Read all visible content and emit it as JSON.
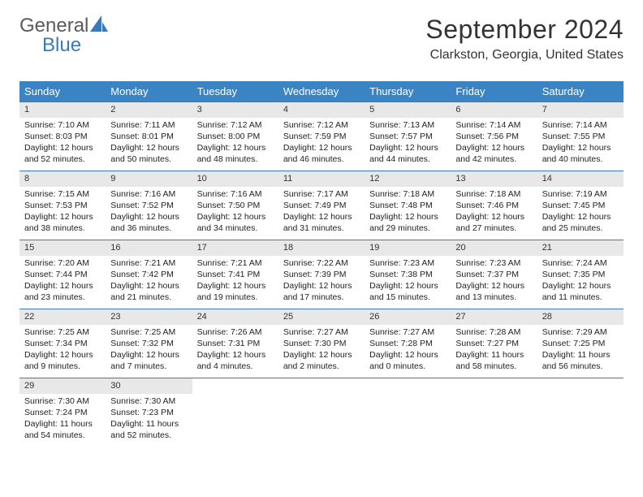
{
  "logo": {
    "text1": "General",
    "text2": "Blue"
  },
  "title": "September 2024",
  "location": "Clarkston, Georgia, United States",
  "colors": {
    "header_bg": "#3a84c4",
    "header_text": "#ffffff",
    "daynum_bg": "#e8e8e8",
    "row_border": "#3a7ab8",
    "logo_gray": "#5a5a5a",
    "logo_blue": "#3a7ab8"
  },
  "weekdays": [
    "Sunday",
    "Monday",
    "Tuesday",
    "Wednesday",
    "Thursday",
    "Friday",
    "Saturday"
  ],
  "start_offset": 0,
  "days": [
    {
      "n": 1,
      "sunrise": "7:10 AM",
      "sunset": "8:03 PM",
      "daylight": "12 hours and 52 minutes."
    },
    {
      "n": 2,
      "sunrise": "7:11 AM",
      "sunset": "8:01 PM",
      "daylight": "12 hours and 50 minutes."
    },
    {
      "n": 3,
      "sunrise": "7:12 AM",
      "sunset": "8:00 PM",
      "daylight": "12 hours and 48 minutes."
    },
    {
      "n": 4,
      "sunrise": "7:12 AM",
      "sunset": "7:59 PM",
      "daylight": "12 hours and 46 minutes."
    },
    {
      "n": 5,
      "sunrise": "7:13 AM",
      "sunset": "7:57 PM",
      "daylight": "12 hours and 44 minutes."
    },
    {
      "n": 6,
      "sunrise": "7:14 AM",
      "sunset": "7:56 PM",
      "daylight": "12 hours and 42 minutes."
    },
    {
      "n": 7,
      "sunrise": "7:14 AM",
      "sunset": "7:55 PM",
      "daylight": "12 hours and 40 minutes."
    },
    {
      "n": 8,
      "sunrise": "7:15 AM",
      "sunset": "7:53 PM",
      "daylight": "12 hours and 38 minutes."
    },
    {
      "n": 9,
      "sunrise": "7:16 AM",
      "sunset": "7:52 PM",
      "daylight": "12 hours and 36 minutes."
    },
    {
      "n": 10,
      "sunrise": "7:16 AM",
      "sunset": "7:50 PM",
      "daylight": "12 hours and 34 minutes."
    },
    {
      "n": 11,
      "sunrise": "7:17 AM",
      "sunset": "7:49 PM",
      "daylight": "12 hours and 31 minutes."
    },
    {
      "n": 12,
      "sunrise": "7:18 AM",
      "sunset": "7:48 PM",
      "daylight": "12 hours and 29 minutes."
    },
    {
      "n": 13,
      "sunrise": "7:18 AM",
      "sunset": "7:46 PM",
      "daylight": "12 hours and 27 minutes."
    },
    {
      "n": 14,
      "sunrise": "7:19 AM",
      "sunset": "7:45 PM",
      "daylight": "12 hours and 25 minutes."
    },
    {
      "n": 15,
      "sunrise": "7:20 AM",
      "sunset": "7:44 PM",
      "daylight": "12 hours and 23 minutes."
    },
    {
      "n": 16,
      "sunrise": "7:21 AM",
      "sunset": "7:42 PM",
      "daylight": "12 hours and 21 minutes."
    },
    {
      "n": 17,
      "sunrise": "7:21 AM",
      "sunset": "7:41 PM",
      "daylight": "12 hours and 19 minutes."
    },
    {
      "n": 18,
      "sunrise": "7:22 AM",
      "sunset": "7:39 PM",
      "daylight": "12 hours and 17 minutes."
    },
    {
      "n": 19,
      "sunrise": "7:23 AM",
      "sunset": "7:38 PM",
      "daylight": "12 hours and 15 minutes."
    },
    {
      "n": 20,
      "sunrise": "7:23 AM",
      "sunset": "7:37 PM",
      "daylight": "12 hours and 13 minutes."
    },
    {
      "n": 21,
      "sunrise": "7:24 AM",
      "sunset": "7:35 PM",
      "daylight": "12 hours and 11 minutes."
    },
    {
      "n": 22,
      "sunrise": "7:25 AM",
      "sunset": "7:34 PM",
      "daylight": "12 hours and 9 minutes."
    },
    {
      "n": 23,
      "sunrise": "7:25 AM",
      "sunset": "7:32 PM",
      "daylight": "12 hours and 7 minutes."
    },
    {
      "n": 24,
      "sunrise": "7:26 AM",
      "sunset": "7:31 PM",
      "daylight": "12 hours and 4 minutes."
    },
    {
      "n": 25,
      "sunrise": "7:27 AM",
      "sunset": "7:30 PM",
      "daylight": "12 hours and 2 minutes."
    },
    {
      "n": 26,
      "sunrise": "7:27 AM",
      "sunset": "7:28 PM",
      "daylight": "12 hours and 0 minutes."
    },
    {
      "n": 27,
      "sunrise": "7:28 AM",
      "sunset": "7:27 PM",
      "daylight": "11 hours and 58 minutes."
    },
    {
      "n": 28,
      "sunrise": "7:29 AM",
      "sunset": "7:25 PM",
      "daylight": "11 hours and 56 minutes."
    },
    {
      "n": 29,
      "sunrise": "7:30 AM",
      "sunset": "7:24 PM",
      "daylight": "11 hours and 54 minutes."
    },
    {
      "n": 30,
      "sunrise": "7:30 AM",
      "sunset": "7:23 PM",
      "daylight": "11 hours and 52 minutes."
    }
  ],
  "labels": {
    "sunrise": "Sunrise:",
    "sunset": "Sunset:",
    "daylight": "Daylight:"
  }
}
